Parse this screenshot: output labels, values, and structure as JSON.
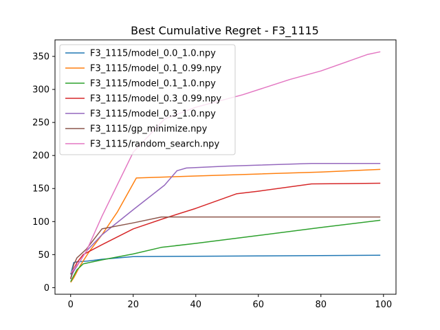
{
  "chart_data": {
    "type": "line",
    "title": "Best Cumulative Regret - F3_1115",
    "xlabel": "",
    "ylabel": "",
    "xlim": [
      -5,
      104
    ],
    "ylim": [
      -10,
      375
    ],
    "xticks": [
      0,
      20,
      40,
      60,
      80,
      100
    ],
    "yticks": [
      0,
      50,
      100,
      150,
      200,
      250,
      300,
      350
    ],
    "grid": false,
    "legend_position": "top-left",
    "series": [
      {
        "name": "F3_1115/model_0.0_1.0.npy",
        "color": "#1f77b4",
        "x": [
          0,
          1,
          2,
          5,
          10,
          20,
          40,
          60,
          80,
          99
        ],
        "y": [
          20,
          38,
          39,
          40,
          43,
          47,
          47.5,
          48,
          48.5,
          49
        ]
      },
      {
        "name": "F3_1115/model_0.1_0.99.npy",
        "color": "#ff7f0e",
        "x": [
          0,
          1,
          3,
          6,
          10,
          15,
          21,
          40,
          60,
          80,
          99
        ],
        "y": [
          8,
          15,
          33,
          55,
          80,
          115,
          166,
          169,
          172,
          175,
          179
        ]
      },
      {
        "name": "F3_1115/model_0.1_1.0.npy",
        "color": "#2ca02c",
        "x": [
          0,
          1,
          2,
          4,
          10,
          20,
          29,
          40,
          60,
          80,
          99
        ],
        "y": [
          9,
          18,
          27,
          36,
          42,
          51,
          61,
          67,
          79,
          91,
          102
        ]
      },
      {
        "name": "F3_1115/model_0.3_0.99.npy",
        "color": "#d62728",
        "x": [
          0,
          1,
          2,
          4,
          10,
          20,
          30,
          40,
          53,
          60,
          77,
          99
        ],
        "y": [
          13,
          28,
          38,
          50,
          65,
          89,
          105,
          120,
          142,
          146,
          157,
          158
        ]
      },
      {
        "name": "F3_1115/model_0.3_1.0.npy",
        "color": "#9467bd",
        "x": [
          0,
          1,
          3,
          5,
          10,
          20,
          30,
          34,
          37,
          50,
          77,
          99
        ],
        "y": [
          15,
          25,
          40,
          55,
          80,
          118,
          155,
          177,
          181,
          184,
          188,
          188
        ]
      },
      {
        "name": "F3_1115/gp_minimize.npy",
        "color": "#8c564b",
        "x": [
          0,
          1,
          2,
          5,
          10,
          20,
          29,
          40,
          60,
          80,
          99
        ],
        "y": [
          13,
          35,
          45,
          58,
          89,
          98,
          107,
          107,
          107,
          107,
          107
        ]
      },
      {
        "name": "F3_1115/random_search.npy",
        "color": "#e377c2",
        "x": [
          0,
          1,
          3,
          5,
          10,
          20,
          30,
          40,
          55,
          70,
          80,
          95,
          99
        ],
        "y": [
          22,
          28,
          40,
          55,
          108,
          205,
          255,
          273,
          292,
          315,
          328,
          353,
          357
        ]
      }
    ]
  }
}
